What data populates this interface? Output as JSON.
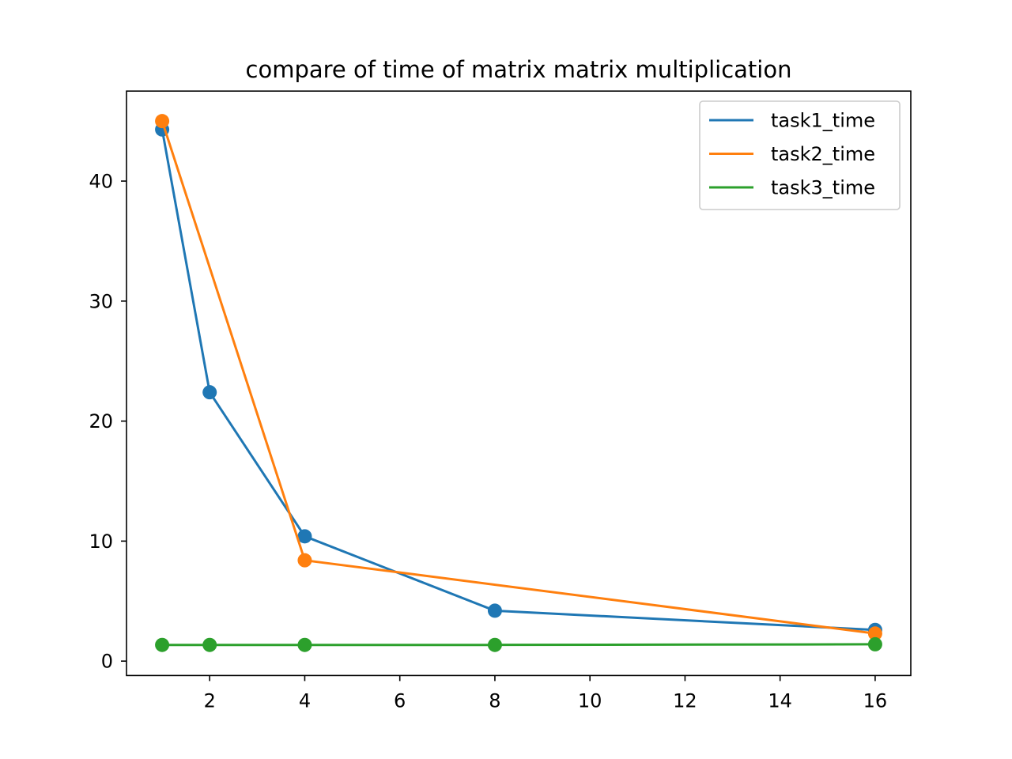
{
  "chart_data": {
    "type": "line",
    "title": "compare of time of matrix matrix multiplication",
    "xlabel": "",
    "ylabel": "",
    "x": [
      1,
      2,
      4,
      8,
      16
    ],
    "xlim": [
      0.25,
      16.75
    ],
    "ylim": [
      -1.2,
      47.5
    ],
    "xticks": [
      2,
      4,
      6,
      8,
      10,
      12,
      14,
      16
    ],
    "yticks": [
      0,
      10,
      20,
      30,
      40
    ],
    "grid": false,
    "legend_position": "top-right",
    "series": [
      {
        "name": "task1_time",
        "color": "#1f77b4",
        "values": [
          44.3,
          22.4,
          10.4,
          4.2,
          2.6
        ]
      },
      {
        "name": "task2_time",
        "color": "#ff7f0e",
        "values": [
          45.0,
          null,
          8.4,
          null,
          2.3
        ]
      },
      {
        "name": "task3_time",
        "color": "#2ca02c",
        "values": [
          1.35,
          1.35,
          1.35,
          1.35,
          1.4
        ]
      }
    ]
  }
}
